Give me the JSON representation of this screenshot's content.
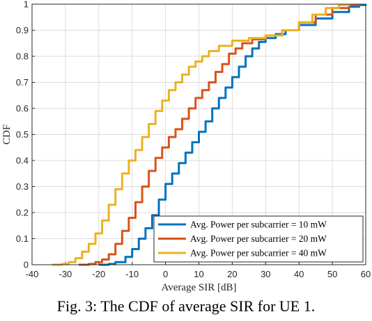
{
  "caption": "Fig. 3: The CDF of average SIR for UE 1.",
  "chart_data": {
    "type": "line",
    "title": "",
    "xlabel": "Average SIR [dB]",
    "ylabel": "CDF",
    "xlim": [
      -40,
      60
    ],
    "ylim": [
      0,
      1
    ],
    "xticks": [
      -40,
      -30,
      -20,
      -10,
      0,
      10,
      20,
      30,
      40,
      50,
      60
    ],
    "yticks": [
      0,
      0.1,
      0.2,
      0.3,
      0.4,
      0.5,
      0.6,
      0.7,
      0.8,
      0.9,
      1
    ],
    "xtick_labels": [
      "-40",
      "-30",
      "-20",
      "-10",
      "0",
      "10",
      "20",
      "30",
      "40",
      "50",
      "60"
    ],
    "ytick_labels": [
      "0",
      "0.1",
      "0.2",
      "0.3",
      "0.4",
      "0.5",
      "0.6",
      "0.7",
      "0.8",
      "0.9",
      "1"
    ],
    "grid": true,
    "legend_position": "bottom-right",
    "series": [
      {
        "name": "Avg. Power per subcarrier = 10 mW",
        "color": "#0072BD",
        "x": [
          -20,
          -17,
          -15,
          -12,
          -10,
          -8,
          -6,
          -4,
          -2,
          0,
          2,
          4,
          6,
          8,
          10,
          12,
          14,
          16,
          18,
          20,
          22,
          24,
          26,
          28,
          30,
          33,
          36,
          40,
          45,
          50,
          55,
          58,
          60
        ],
        "y": [
          0,
          0.003,
          0.01,
          0.03,
          0.06,
          0.1,
          0.14,
          0.19,
          0.25,
          0.31,
          0.35,
          0.39,
          0.43,
          0.47,
          0.51,
          0.55,
          0.6,
          0.64,
          0.68,
          0.72,
          0.76,
          0.8,
          0.83,
          0.855,
          0.87,
          0.885,
          0.9,
          0.92,
          0.945,
          0.97,
          0.99,
          0.997,
          1
        ]
      },
      {
        "name": "Avg. Power per subcarrier = 20 mW",
        "color": "#D95319",
        "x": [
          -26,
          -23,
          -21,
          -19,
          -17,
          -15,
          -13,
          -11,
          -9,
          -7,
          -5,
          -3,
          -1,
          1,
          3,
          5,
          7,
          9,
          11,
          13,
          15,
          17,
          19,
          21,
          23,
          26,
          30,
          35,
          40,
          45,
          50,
          55,
          58
        ],
        "y": [
          0,
          0.003,
          0.01,
          0.02,
          0.04,
          0.08,
          0.13,
          0.18,
          0.24,
          0.3,
          0.36,
          0.41,
          0.45,
          0.49,
          0.52,
          0.56,
          0.6,
          0.64,
          0.67,
          0.7,
          0.74,
          0.77,
          0.81,
          0.83,
          0.85,
          0.865,
          0.88,
          0.9,
          0.93,
          0.96,
          0.985,
          0.997,
          1
        ]
      },
      {
        "name": "Avg. Power per subcarrier = 40 mW",
        "color": "#EDB120",
        "x": [
          -34,
          -31,
          -29,
          -27,
          -25,
          -23,
          -21,
          -19,
          -17,
          -15,
          -13,
          -11,
          -9,
          -7,
          -5,
          -3,
          -1,
          1,
          3,
          5,
          7,
          9,
          11,
          13,
          16,
          20,
          25,
          30,
          35,
          40,
          44,
          48,
          52,
          55
        ],
        "y": [
          0,
          0.003,
          0.01,
          0.025,
          0.05,
          0.08,
          0.12,
          0.17,
          0.23,
          0.29,
          0.35,
          0.4,
          0.44,
          0.49,
          0.54,
          0.59,
          0.63,
          0.67,
          0.7,
          0.73,
          0.76,
          0.78,
          0.8,
          0.82,
          0.84,
          0.86,
          0.87,
          0.88,
          0.9,
          0.93,
          0.96,
          0.985,
          0.997,
          1
        ]
      }
    ]
  }
}
